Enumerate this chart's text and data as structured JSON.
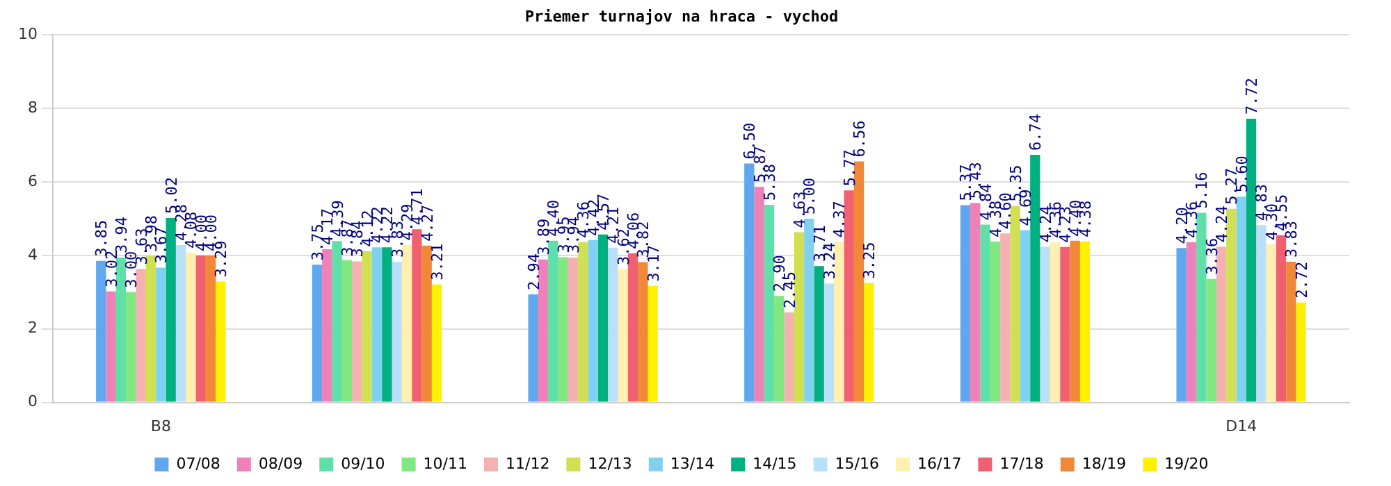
{
  "chart_data": {
    "type": "bar",
    "title": "Priemer turnajov na hraca - vychod",
    "categories": [
      "B8",
      null,
      null,
      null,
      null,
      "D14"
    ],
    "ylim": [
      0,
      10
    ],
    "yticks": [
      0,
      2,
      4,
      6,
      8,
      10
    ],
    "grid": "y",
    "legend": "bottom",
    "series": [
      {
        "name": "07/08",
        "color": "#5fa8f0",
        "values": [
          3.85,
          3.75,
          2.94,
          6.5,
          5.37,
          4.2
        ],
        "value_labels": [
          "3.85",
          "3.75",
          "2.94",
          "6.50",
          "5.37",
          "4.20"
        ]
      },
      {
        "name": "08/09",
        "color": "#f080b8",
        "values": [
          3.02,
          4.17,
          3.89,
          5.87,
          5.43,
          4.36
        ],
        "value_labels": [
          "3.02",
          "4.17",
          "3.89",
          "5.87",
          "5.43",
          "4.36"
        ]
      },
      {
        "name": "09/10",
        "color": "#5fe0a8",
        "values": [
          3.94,
          4.39,
          4.4,
          5.38,
          4.84,
          5.16
        ],
        "value_labels": [
          "3.94",
          "4.39",
          "4.40",
          "5.38",
          "4.84",
          "5.16"
        ]
      },
      {
        "name": "10/11",
        "color": "#80e880",
        "values": [
          3.0,
          3.87,
          3.95,
          2.9,
          4.38,
          3.36
        ],
        "value_labels": [
          "3.00",
          "3.87",
          "3.95",
          "2.90",
          "4.38",
          "3.36"
        ]
      },
      {
        "name": "11/12",
        "color": "#f5b0b0",
        "values": [
          3.63,
          3.84,
          3.94,
          2.45,
          4.6,
          4.24
        ],
        "value_labels": [
          "3.63",
          "3.84",
          "3.94",
          "2.45",
          "4.60",
          "4.24"
        ]
      },
      {
        "name": "12/13",
        "color": "#d0e050",
        "values": [
          3.98,
          4.12,
          4.36,
          4.63,
          5.35,
          5.27
        ],
        "value_labels": [
          "3.98",
          "4.12",
          "4.36",
          "4.63",
          "5.35",
          "5.27"
        ]
      },
      {
        "name": "13/14",
        "color": "#80d0f0",
        "values": [
          3.67,
          4.22,
          4.42,
          5.0,
          4.69,
          5.6
        ],
        "value_labels": [
          "3.67",
          "4.22",
          "4.42",
          "5.00",
          "4.69",
          "5.60"
        ]
      },
      {
        "name": "14/15",
        "color": "#00b080",
        "values": [
          5.02,
          4.22,
          4.57,
          3.71,
          6.74,
          7.72
        ],
        "value_labels": [
          "5.02",
          "4.22",
          "4.57",
          "3.71",
          "6.74",
          "7.72"
        ]
      },
      {
        "name": "15/16",
        "color": "#b8e0f8",
        "values": [
          4.28,
          3.83,
          4.21,
          3.24,
          4.24,
          4.83
        ],
        "value_labels": [
          "4.28",
          "3.83",
          "4.21",
          "3.24",
          "4.24",
          "4.83"
        ]
      },
      {
        "name": "16/17",
        "color": "#fff0b0",
        "values": [
          4.08,
          4.29,
          3.62,
          4.37,
          4.36,
          4.3
        ],
        "value_labels": [
          "4.08",
          "4.29",
          "3.62",
          "4.37",
          "4.36",
          "4.30"
        ]
      },
      {
        "name": "17/18",
        "color": "#f06070",
        "values": [
          4.0,
          4.71,
          4.06,
          5.77,
          4.23,
          4.55
        ],
        "value_labels": [
          "4.00",
          "4.71",
          "4.06",
          "5.77",
          "4.23",
          "4.55"
        ]
      },
      {
        "name": "18/19",
        "color": "#f08838",
        "values": [
          4.0,
          4.27,
          3.82,
          6.56,
          4.4,
          3.83
        ],
        "value_labels": [
          "4.00",
          "4.27",
          "3.82",
          "6.56",
          "4.40",
          "3.83"
        ]
      },
      {
        "name": "19/20",
        "color": "#fff000",
        "values": [
          3.29,
          3.21,
          3.17,
          3.25,
          4.38,
          2.72
        ],
        "value_labels": [
          "3.29",
          "3.21",
          "3.17",
          "3.25",
          "4.38",
          "2.72"
        ]
      }
    ]
  }
}
